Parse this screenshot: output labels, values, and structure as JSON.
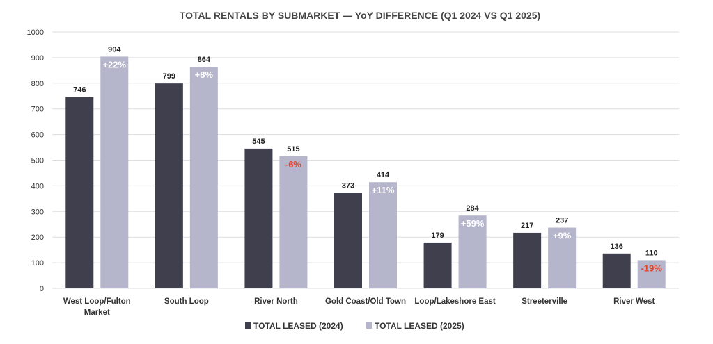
{
  "chart_data": {
    "type": "bar",
    "title": "TOTAL RENTALS BY SUBMARKET — YoY DIFFERENCE (Q1 2024 VS Q1 2025)",
    "categories": [
      [
        "West Loop/Fulton",
        "Market"
      ],
      [
        "South Loop"
      ],
      [
        "River North"
      ],
      [
        "Gold Coast/Old Town"
      ],
      [
        "Loop/Lakeshore East"
      ],
      [
        "Streeterville"
      ],
      [
        "River West"
      ]
    ],
    "series": [
      {
        "name": "TOTAL LEASED (2024)",
        "color": "#3f3f4e",
        "values": [
          746,
          799,
          545,
          373,
          179,
          217,
          136
        ]
      },
      {
        "name": "TOTAL LEASED (2025)",
        "color": "#b5b5cc",
        "values": [
          904,
          864,
          515,
          414,
          284,
          237,
          110
        ]
      }
    ],
    "yoy_labels": [
      "+22%",
      "+8%",
      "-6%",
      "+11%",
      "+59%",
      "+9%",
      "-19%"
    ],
    "positive_label_color": "#ffffff",
    "negative_label_color": "#e2452c",
    "ylim": [
      0,
      1000
    ],
    "yticks": [
      0,
      100,
      200,
      300,
      400,
      500,
      600,
      700,
      800,
      900,
      1000
    ],
    "grid": true,
    "legend": "bottom-center"
  }
}
